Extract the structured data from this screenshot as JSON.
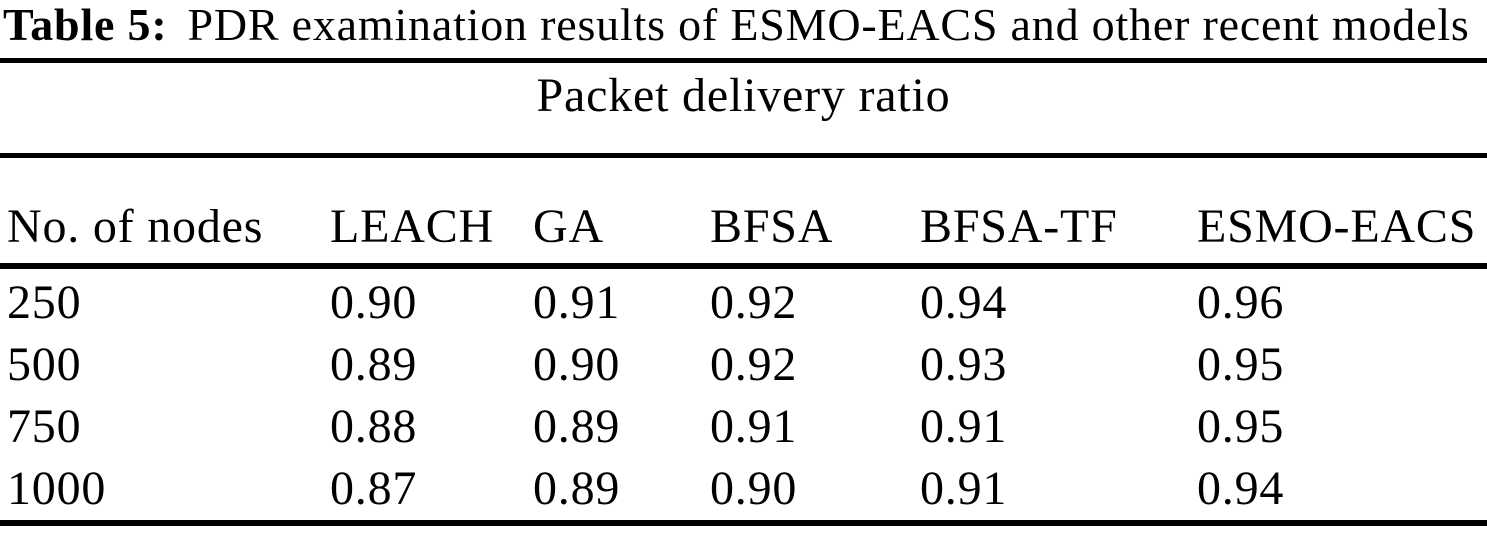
{
  "caption": {
    "label": "Table 5:",
    "text": "PDR examination results of ESMO-EACS and other recent models"
  },
  "table": {
    "span_header": "Packet delivery ratio",
    "columns": [
      "No. of nodes",
      "LEACH",
      "GA",
      "BFSA",
      "BFSA-TF",
      "ESMO-EACS"
    ],
    "rows": [
      [
        "250",
        "0.90",
        "0.91",
        "0.92",
        "0.94",
        "0.96"
      ],
      [
        "500",
        "0.89",
        "0.90",
        "0.92",
        "0.93",
        "0.95"
      ],
      [
        "750",
        "0.88",
        "0.89",
        "0.91",
        "0.91",
        "0.95"
      ],
      [
        "1000",
        "0.87",
        "0.89",
        "0.90",
        "0.91",
        "0.94"
      ]
    ]
  },
  "chart_data": {
    "type": "table",
    "title": "Table 5: PDR examination results of ESMO-EACS and other recent models",
    "group_header": "Packet delivery ratio",
    "categories": [
      250,
      500,
      750,
      1000
    ],
    "x_label": "No. of nodes",
    "series": [
      {
        "name": "LEACH",
        "values": [
          0.9,
          0.89,
          0.88,
          0.87
        ]
      },
      {
        "name": "GA",
        "values": [
          0.91,
          0.9,
          0.89,
          0.89
        ]
      },
      {
        "name": "BFSA",
        "values": [
          0.92,
          0.92,
          0.91,
          0.9
        ]
      },
      {
        "name": "BFSA-TF",
        "values": [
          0.94,
          0.93,
          0.91,
          0.91
        ]
      },
      {
        "name": "ESMO-EACS",
        "values": [
          0.96,
          0.95,
          0.95,
          0.94
        ]
      }
    ]
  },
  "colors": {
    "text": "#000000",
    "background": "#ffffff",
    "rule": "#000000"
  }
}
